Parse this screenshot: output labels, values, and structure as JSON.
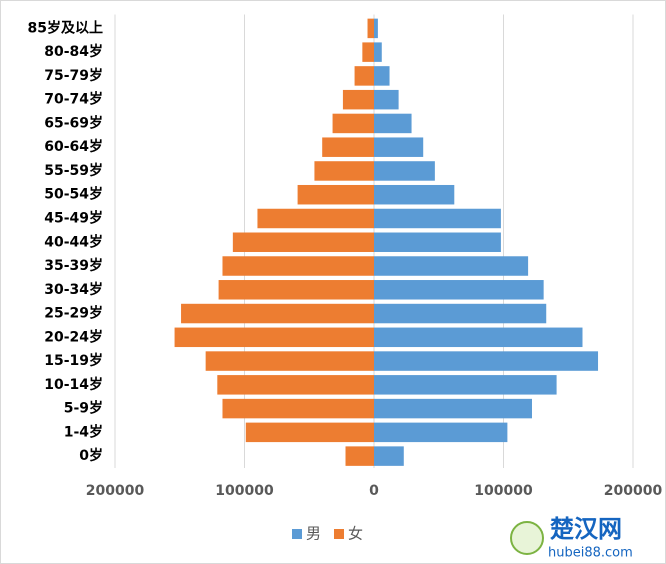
{
  "chart_data": {
    "type": "pyramid",
    "categories": [
      "0岁",
      "1-4岁",
      "5-9岁",
      "10-14岁",
      "15-19岁",
      "20-24岁",
      "25-29岁",
      "30-34岁",
      "35-39岁",
      "40-44岁",
      "45-49岁",
      "50-54岁",
      "55-59岁",
      "60-64岁",
      "65-69岁",
      "70-74岁",
      "75-79岁",
      "80-84岁",
      "85岁及以上"
    ],
    "series": [
      {
        "name": "男",
        "color": "#5b9bd5",
        "values": [
          23000,
          103000,
          122000,
          141000,
          173000,
          161000,
          133000,
          131000,
          119000,
          98000,
          98000,
          62000,
          47000,
          38000,
          29000,
          19000,
          12000,
          6000,
          3000
        ]
      },
      {
        "name": "女",
        "color": "#ed7d31",
        "values": [
          -22000,
          -99000,
          -117000,
          -121000,
          -130000,
          -154000,
          -149000,
          -120000,
          -117000,
          -109000,
          -90000,
          -59000,
          -46000,
          -40000,
          -32000,
          -24000,
          -15000,
          -9000,
          -5000
        ]
      }
    ],
    "xlim": [
      -200000,
      200000
    ],
    "xticks": [
      {
        "value": -200000,
        "label": "200000"
      },
      {
        "value": -100000,
        "label": "100000"
      },
      0,
      100000,
      200000
    ],
    "grid": true,
    "legend": "bottom"
  },
  "watermark": {
    "name": "楚汉网",
    "url": "hubei88.com"
  }
}
